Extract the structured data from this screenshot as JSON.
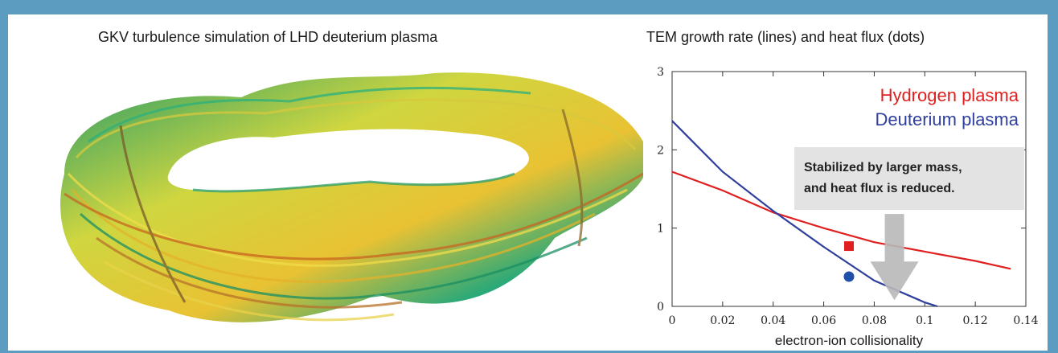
{
  "left_panel": {
    "title": "GKV turbulence simulation of LHD deuterium plasma"
  },
  "right_panel": {
    "title": "TEM growth rate (lines) and heat flux (dots)"
  },
  "chart_data": {
    "type": "line",
    "title": "TEM growth rate (lines) and heat flux (dots)",
    "xlabel": "electron-ion collisionality",
    "ylabel": "",
    "xlim": [
      0,
      0.14
    ],
    "ylim": [
      0,
      3
    ],
    "x_ticks": [
      "0",
      "0.02",
      "0.04",
      "0.06",
      "0.08",
      "0.1",
      "0.12",
      "0.14"
    ],
    "y_ticks": [
      "0",
      "1",
      "2",
      "3"
    ],
    "grid": false,
    "legend_position": "top-right",
    "series": [
      {
        "name": "Hydrogen plasma",
        "color": "#e02020",
        "x": [
          0,
          0.02,
          0.04,
          0.06,
          0.08,
          0.1,
          0.12,
          0.134
        ],
        "y": [
          1.72,
          1.48,
          1.2,
          1.0,
          0.82,
          0.7,
          0.58,
          0.48
        ]
      },
      {
        "name": "Deuterium plasma",
        "color": "#2f3f9e",
        "x": [
          0,
          0.02,
          0.04,
          0.06,
          0.08,
          0.1,
          0.105
        ],
        "y": [
          2.37,
          1.72,
          1.22,
          0.76,
          0.33,
          0.05,
          0
        ]
      }
    ],
    "points": [
      {
        "series": "Hydrogen plasma",
        "marker": "square",
        "color": "#e02020",
        "x": 0.07,
        "y": 0.77
      },
      {
        "series": "Deuterium plasma",
        "marker": "circle",
        "color": "#1f4fa8",
        "x": 0.07,
        "y": 0.38
      }
    ],
    "annotation": {
      "lines": [
        "Stabilized by larger mass,",
        "and heat flux is reduced."
      ],
      "arrow_from": {
        "x": 0.088,
        "y": 1.18
      },
      "arrow_to": {
        "x": 0.088,
        "y": 0.08
      }
    }
  }
}
